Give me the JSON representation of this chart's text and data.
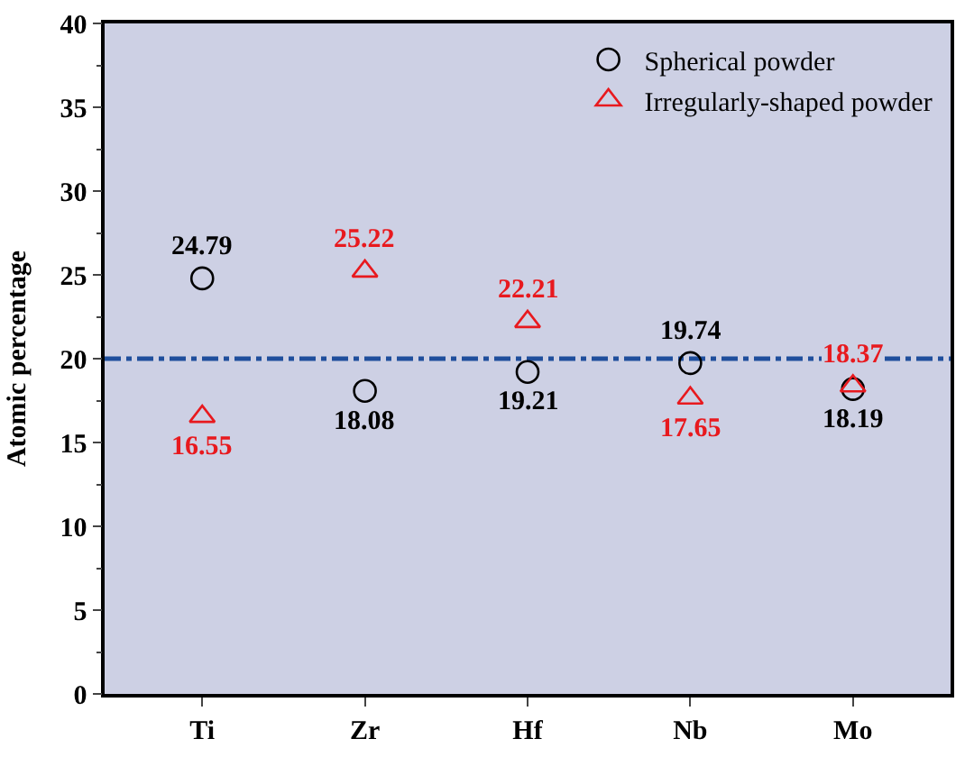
{
  "chart_data": {
    "type": "scatter",
    "ylabel": "Atomic percentage",
    "categories": [
      "Ti",
      "Zr",
      "Hf",
      "Nb",
      "Mo"
    ],
    "series": [
      {
        "name": "Spherical powder",
        "color": "#000000",
        "marker": "circle",
        "values": [
          24.79,
          18.08,
          19.21,
          19.74,
          18.19
        ]
      },
      {
        "name": "Irregularly-shaped powder",
        "color": "#e8191e",
        "marker": "triangle",
        "values": [
          16.55,
          25.22,
          22.21,
          17.65,
          18.37
        ]
      }
    ],
    "ylim": [
      0,
      40
    ],
    "yticks": [
      0,
      5,
      10,
      15,
      20,
      25,
      30,
      35,
      40
    ],
    "ref_lines": [
      {
        "axis": "y",
        "value": 20,
        "color": "#1f4e9c"
      }
    ],
    "data_labels": true,
    "legend": "top right",
    "grid": false
  }
}
